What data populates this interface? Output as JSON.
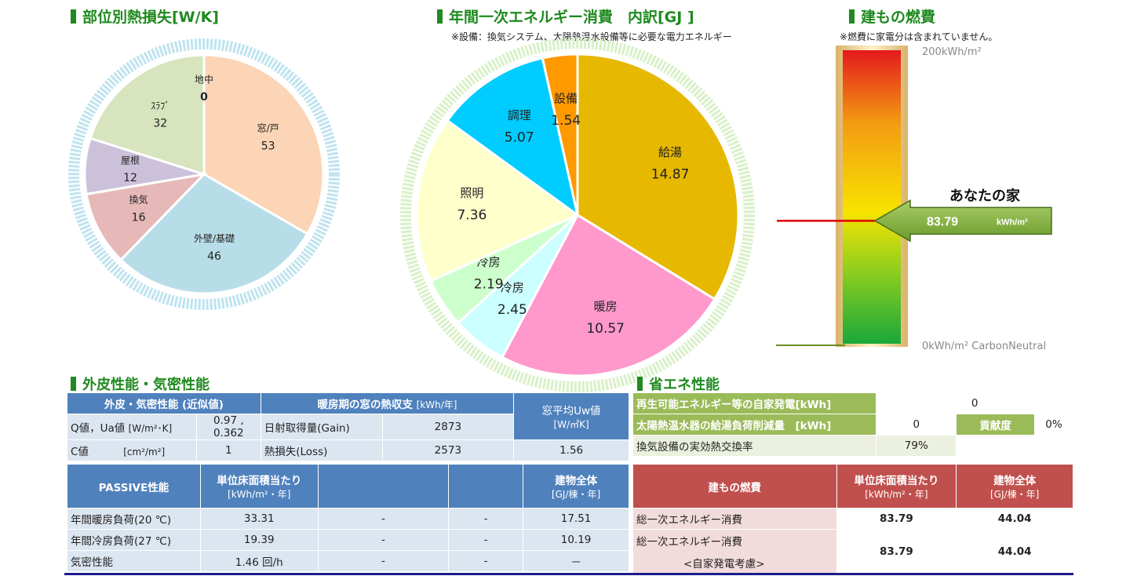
{
  "heat_loss": {
    "title": "部位別熱損失[W/K]",
    "chart_data": {
      "type": "pie",
      "title": "部位別熱損失[W/K]",
      "slices": [
        {
          "label": "窓/戸",
          "value": 53,
          "color": "#fbd5b5"
        },
        {
          "label": "外壁/基礎",
          "value": 46,
          "color": "#b7dde8"
        },
        {
          "label": "換気",
          "value": 16,
          "color": "#e6b9b8"
        },
        {
          "label": "屋根",
          "value": 12,
          "color": "#ccc1da"
        },
        {
          "label": "ｽﾗﾌﾞ",
          "value": 32,
          "color": "#d7e4bd"
        },
        {
          "label": "地中",
          "value": 0,
          "color": "#ffffff"
        }
      ]
    }
  },
  "energy": {
    "title": "年間一次エネルギー消費　内訳[GJ ]",
    "note": "※設備：換気システム、太陽熱温水設備等に必要な電力エネルギー",
    "chart_data": {
      "type": "pie",
      "title": "年間一次エネルギー消費　内訳[GJ ]",
      "slices": [
        {
          "label": "給湯",
          "value": 14.87,
          "color": "#e6b800"
        },
        {
          "label": "暖房",
          "value": 10.57,
          "color": "#ff99cc"
        },
        {
          "label": "冷房",
          "value": 2.45,
          "color": "#ccffff"
        },
        {
          "label": "冷房",
          "value": 2.19,
          "color": "#ccffcc"
        },
        {
          "label": "照明",
          "value": 7.36,
          "color": "#ffffcc"
        },
        {
          "label": "調理",
          "value": 5.07,
          "color": "#00ccff"
        },
        {
          "label": "設備",
          "value": 1.54,
          "color": "#ff9900"
        }
      ]
    }
  },
  "fuel": {
    "title": "建もの燃費",
    "note": "※燃費に家電分は含まれていません。",
    "top_label": "200kWh/m²",
    "bottom_label": "0kWh/m² CarbonNeutral",
    "your_house_label": "あなたの家",
    "chart_data": {
      "type": "bar",
      "value": 83.79,
      "unit": "kWh/m²",
      "min": 0,
      "max": 200
    }
  },
  "envelope": {
    "title": "外皮性能・気密性能",
    "header1": "外皮・気密性能 (近似値)",
    "header2": "暖房期の窓の熱収支",
    "header2_unit": "[kWh/年]",
    "header3a": "窓平均Uw値",
    "header3b": "[W/㎡K]",
    "rows": [
      {
        "label": "Q値，Ua値",
        "unit": "[W/m²･K]",
        "value": "0.97 , 0.362",
        "k": "日射取得量(Gain)",
        "v": "2873",
        "uw": "1.56"
      },
      {
        "label": "C値",
        "unit": "[cm²/m²]",
        "value": "1",
        "k": "熱損失(Loss)",
        "v": "2573"
      }
    ]
  },
  "passive": {
    "h1": "PASSIVE性能",
    "h2a": "単位床面積当たり",
    "h2b": "[kWh/m²・年]",
    "h5a": "建物全体",
    "h5b": "[GJ/棟・年]",
    "rows": [
      {
        "label": "年間暖房負荷(20 ℃)",
        "a": "33.31",
        "b": "-",
        "c": "-",
        "d": "17.51"
      },
      {
        "label": "年間冷房負荷(27 ℃)",
        "a": "19.39",
        "b": "-",
        "c": "-",
        "d": "10.19"
      },
      {
        "label": "気密性能",
        "a": "1.46 回/h",
        "b": "-",
        "c": "-",
        "d": "－"
      }
    ]
  },
  "saving": {
    "title": "省エネ性能",
    "rows": [
      {
        "label": "再生可能エネルギー等の自家発電[kWh]",
        "value": "0"
      },
      {
        "label": "太陽熱温水器の給湯負荷削減量　[kWh]",
        "value": "0",
        "k2": "貢献度",
        "v2": "0%"
      },
      {
        "label": "換気設備の実効熱交換率",
        "value": "79%"
      }
    ]
  },
  "fueltable": {
    "h1": "建もの燃費",
    "h2a": "単位床面積当たり",
    "h2b": "[kWh/m²・年]",
    "h3a": "建物全体",
    "h3b": "[GJ/棟・年]",
    "r1": {
      "label": "総一次エネルギー消費",
      "a": "83.79",
      "b": "44.04"
    },
    "r2": {
      "label1": "総一次エネルギー消費",
      "label2": "<自家発電考慮>",
      "a": "83.79",
      "b": "44.04"
    }
  }
}
